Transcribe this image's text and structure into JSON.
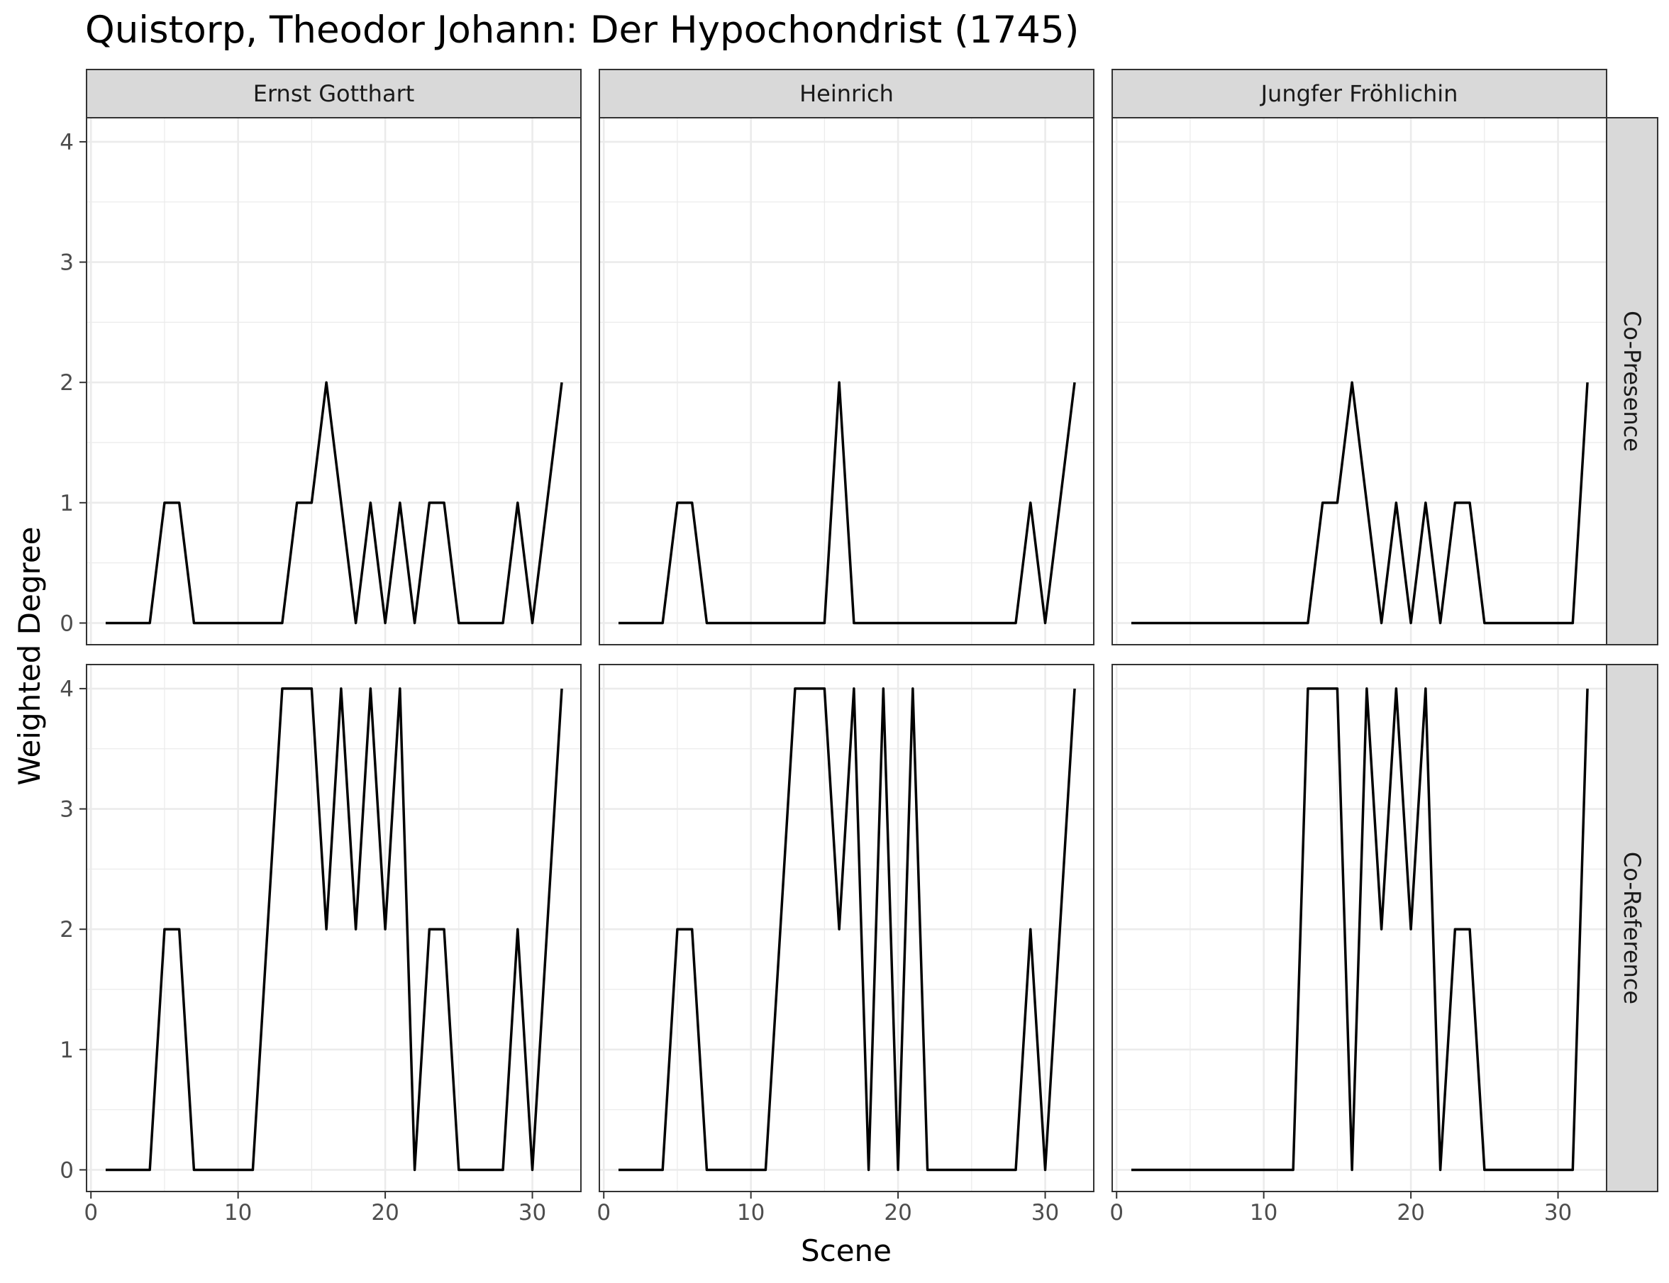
{
  "chart_data": {
    "type": "line",
    "title": "Quistorp, Theodor Johann: Der Hypochondrist (1745)",
    "xlabel": "Scene",
    "ylabel": "Weighted Degree",
    "xlim": [
      1,
      32
    ],
    "ylim": [
      0,
      4
    ],
    "x_ticks": [
      0,
      10,
      20,
      30
    ],
    "y_ticks": [
      0,
      1,
      2,
      3,
      4
    ],
    "grid": true,
    "columns": [
      "Ernst Gotthart",
      "Heinrich",
      "Jungfer Fröhlichin"
    ],
    "rows": [
      "Co-Presence",
      "Co-Reference"
    ],
    "x": [
      1,
      2,
      3,
      4,
      5,
      6,
      7,
      8,
      9,
      10,
      11,
      12,
      13,
      14,
      15,
      16,
      17,
      18,
      19,
      20,
      21,
      22,
      23,
      24,
      25,
      26,
      27,
      28,
      29,
      30,
      31,
      32
    ],
    "panels": [
      {
        "column": "Ernst Gotthart",
        "row": "Co-Presence",
        "values": [
          0,
          0,
          0,
          0,
          1,
          1,
          0,
          0,
          0,
          0,
          0,
          0,
          0,
          1,
          1,
          2,
          1,
          0,
          1,
          0,
          1,
          0,
          1,
          1,
          0,
          0,
          0,
          0,
          1,
          0,
          1,
          2
        ]
      },
      {
        "column": "Heinrich",
        "row": "Co-Presence",
        "values": [
          0,
          0,
          0,
          0,
          1,
          1,
          0,
          0,
          0,
          0,
          0,
          0,
          0,
          0,
          0,
          2,
          0,
          0,
          0,
          0,
          0,
          0,
          0,
          0,
          0,
          0,
          0,
          0,
          1,
          0,
          1,
          2
        ]
      },
      {
        "column": "Jungfer Fröhlichin",
        "row": "Co-Presence",
        "values": [
          0,
          0,
          0,
          0,
          0,
          0,
          0,
          0,
          0,
          0,
          0,
          0,
          0,
          1,
          1,
          2,
          1,
          0,
          1,
          0,
          1,
          0,
          1,
          1,
          0,
          0,
          0,
          0,
          0,
          0,
          0,
          2
        ]
      },
      {
        "column": "Ernst Gotthart",
        "row": "Co-Reference",
        "values": [
          0,
          0,
          0,
          0,
          2,
          2,
          0,
          0,
          0,
          0,
          0,
          2,
          4,
          4,
          4,
          2,
          4,
          2,
          4,
          2,
          4,
          0,
          2,
          2,
          0,
          0,
          0,
          0,
          2,
          0,
          2,
          4
        ]
      },
      {
        "column": "Heinrich",
        "row": "Co-Reference",
        "values": [
          0,
          0,
          0,
          0,
          2,
          2,
          0,
          0,
          0,
          0,
          0,
          2,
          4,
          4,
          4,
          2,
          4,
          0,
          4,
          0,
          4,
          0,
          0,
          0,
          0,
          0,
          0,
          0,
          2,
          0,
          2,
          4
        ]
      },
      {
        "column": "Jungfer Fröhlichin",
        "row": "Co-Reference",
        "values": [
          0,
          0,
          0,
          0,
          0,
          0,
          0,
          0,
          0,
          0,
          0,
          0,
          4,
          4,
          4,
          0,
          4,
          2,
          4,
          2,
          4,
          0,
          2,
          2,
          0,
          0,
          0,
          0,
          0,
          0,
          0,
          4
        ]
      }
    ]
  }
}
